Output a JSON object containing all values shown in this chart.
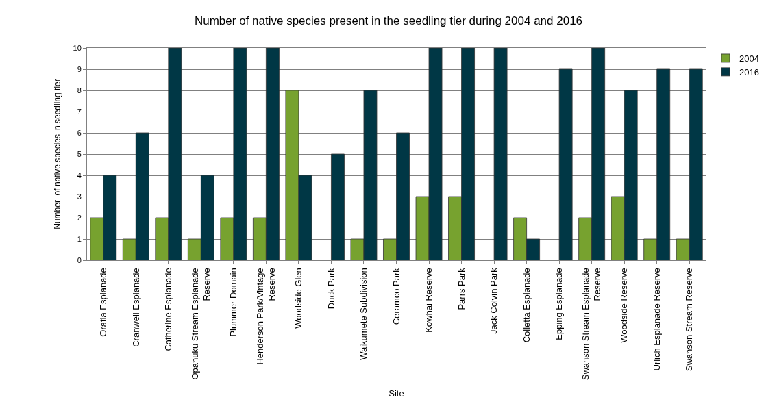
{
  "chart_data": {
    "type": "bar",
    "title": "Number of native species present in the seedling tier during 2004 and 2016",
    "xlabel": "Site",
    "ylabel": "Number  of native species in seedling tier",
    "categories": [
      "Oratia Esplanade",
      "Cranwell Esplanade",
      "Catherine Esplanade",
      "Opanuku Stream Esplanade Reserve",
      "Plummer Domain",
      "Henderson Park/Vintage Reserve",
      "Woodside Glen",
      "Duck Park",
      "Waikumete Subdivision",
      "Ceramco Park",
      "Kowhai Reserve",
      "Parrs Park",
      "Jack Colvin Park",
      "Colletta Esplanade",
      "Epping Esplanade",
      "Swanson Stream Esplanade Reserve",
      "Woodside Reserve",
      "Urlich Esplanade Reserve",
      "Swanson Stream Reserve"
    ],
    "series": [
      {
        "name": "2004",
        "color": "#77a22f",
        "values": [
          2,
          1,
          2,
          1,
          2,
          2,
          8,
          0,
          1,
          1,
          3,
          3,
          0,
          2,
          0,
          2,
          3,
          1,
          1
        ]
      },
      {
        "name": "2016",
        "color": "#003745",
        "values": [
          4,
          6,
          10,
          4,
          10,
          10,
          4,
          5,
          8,
          6,
          10,
          10,
          10,
          1,
          9,
          10,
          8,
          9,
          9
        ]
      }
    ],
    "ylim": [
      0,
      10
    ],
    "yticks": [
      0,
      1,
      2,
      3,
      4,
      5,
      6,
      7,
      8,
      9,
      10
    ],
    "grid": "y",
    "legend": "top right"
  }
}
